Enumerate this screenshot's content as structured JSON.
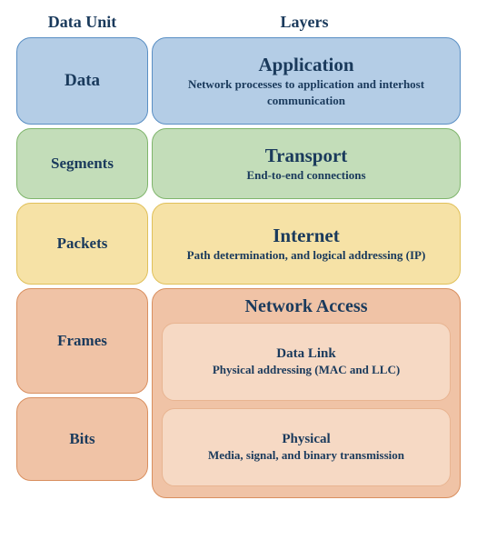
{
  "type": "infographic",
  "background_color": "#ffffff",
  "text_color": "#1a3a5c",
  "font_family": "Georgia, serif",
  "border_radius": 16,
  "headers": {
    "data_unit": "Data Unit",
    "layers": "Layers",
    "fontsize": 18
  },
  "rows": [
    {
      "data_unit": "Data",
      "layer_title": "Application",
      "layer_desc": "Network processes to application and interhost communication",
      "bg_color": "#b4cde6",
      "border_color": "#5a8fc4",
      "height": 96,
      "du_fontsize": 19,
      "title_fontsize": 21,
      "desc_fontsize": 13
    },
    {
      "data_unit": "Segments",
      "layer_title": "Transport",
      "layer_desc": "End-to-end connections",
      "bg_color": "#c3ddb9",
      "border_color": "#7fb56b",
      "height": 78,
      "du_fontsize": 17,
      "title_fontsize": 21,
      "desc_fontsize": 13
    },
    {
      "data_unit": "Packets",
      "layer_title": "Internet",
      "layer_desc": "Path determination, and logical addressing (IP)",
      "bg_color": "#f6e2a6",
      "border_color": "#e0c05a",
      "height": 90,
      "du_fontsize": 17,
      "title_fontsize": 21,
      "desc_fontsize": 13
    }
  ],
  "network_access": {
    "title": "Network Access",
    "title_fontsize": 20,
    "bg_color": "#f0c3a6",
    "border_color": "#d98f5f",
    "sub_bg_color": "#f6d9c4",
    "sub_border_color": "#e8b491",
    "du_fontsize": 17,
    "sub_title_fontsize": 15,
    "sub_desc_fontsize": 13,
    "data_units": [
      {
        "label": "Frames",
        "height": 116
      },
      {
        "label": "Bits",
        "height": 92
      }
    ],
    "sublayers": [
      {
        "title": "Data Link",
        "desc": "Physical addressing (MAC and LLC)",
        "height": 86
      },
      {
        "title": "Physical",
        "desc": "Media, signal, and binary transmission",
        "height": 86
      }
    ]
  }
}
